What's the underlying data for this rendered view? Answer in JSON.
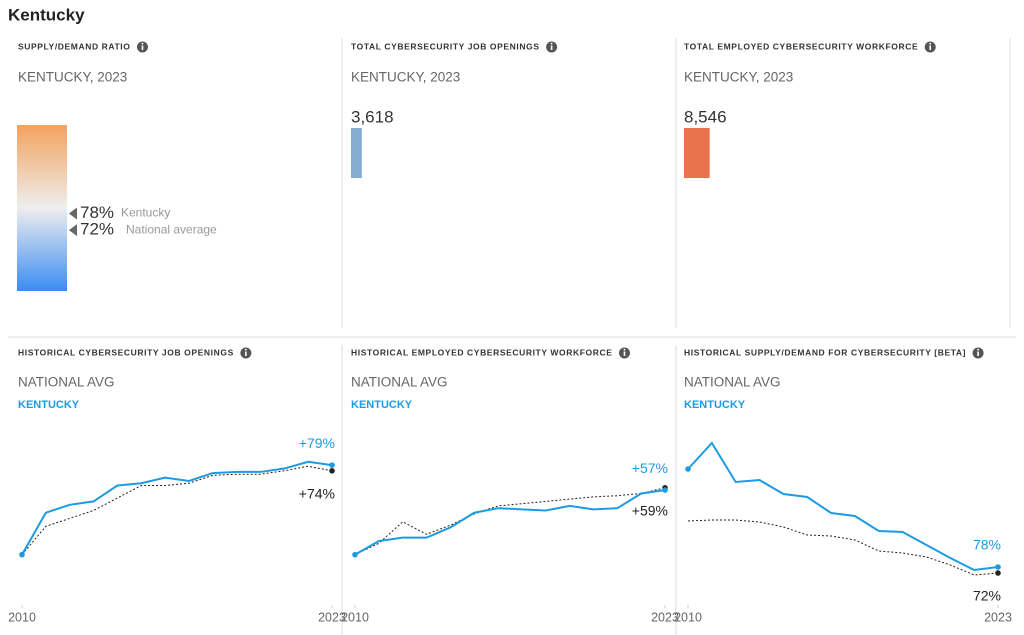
{
  "title": "Kentucky",
  "chart_data": [
    {
      "type": "gauge",
      "title": "SUPPLY/DEMAND RATIO",
      "subtitle": "KENTUCKY, 2023",
      "ylim": [
        50,
        110
      ],
      "colors": [
        "#f2a25e",
        "#eeeeee",
        "#3a8cf3"
      ],
      "series": [
        {
          "name": "Kentucky",
          "values": [
            78
          ],
          "value_labels": [
            "78%"
          ]
        },
        {
          "name": "National average",
          "values": [
            72
          ],
          "value_labels": [
            "72%"
          ]
        }
      ]
    },
    {
      "type": "bar",
      "title": "TOTAL CYBERSECURITY JOB OPENINGS",
      "subtitle": "KENTUCKY, 2023",
      "values": [
        3618
      ],
      "value_labels": [
        "3,618"
      ],
      "color": "#86adcf"
    },
    {
      "type": "bar",
      "title": "TOTAL EMPLOYED CYBERSECURITY WORKFORCE",
      "subtitle": "KENTUCKY, 2023",
      "values": [
        8546
      ],
      "value_labels": [
        "8,546"
      ],
      "color": "#e8734d"
    },
    {
      "type": "line",
      "title": "HISTORICAL CYBERSECURITY JOB OPENINGS",
      "x": [
        2010,
        2011,
        2012,
        2013,
        2014,
        2015,
        2016,
        2017,
        2018,
        2019,
        2020,
        2021,
        2022,
        2023
      ],
      "xlim": [
        2010,
        2023
      ],
      "xticks": [
        2010,
        2023
      ],
      "ylim": [
        -40,
        110
      ],
      "series": [
        {
          "name": "NATIONAL AVG",
          "color": "#222222",
          "dash": true,
          "values": [
            0,
            25,
            32,
            39,
            50,
            61,
            61,
            63,
            70,
            71,
            71,
            74,
            78,
            74
          ],
          "end_label": "+74%"
        },
        {
          "name": "KENTUCKY",
          "color": "#1c9be3",
          "dash": false,
          "values": [
            0,
            37,
            44,
            47,
            61,
            63,
            68,
            65,
            72,
            73,
            73,
            76,
            82,
            79
          ],
          "end_label": "+79%"
        }
      ]
    },
    {
      "type": "line",
      "title": "HISTORICAL EMPLOYED CYBERSECURITY WORKFORCE",
      "x": [
        2010,
        2011,
        2012,
        2013,
        2014,
        2015,
        2016,
        2017,
        2018,
        2019,
        2020,
        2021,
        2022,
        2023
      ],
      "xlim": [
        2010,
        2023
      ],
      "xticks": [
        2010,
        2023
      ],
      "ylim": [
        -40,
        110
      ],
      "series": [
        {
          "name": "NATIONAL AVG",
          "color": "#222222",
          "dash": true,
          "values": [
            0,
            10,
            29,
            18,
            26,
            36,
            43,
            45,
            47,
            49,
            51,
            52,
            54,
            59
          ],
          "end_label": "+59%"
        },
        {
          "name": "KENTUCKY",
          "color": "#1c9be3",
          "dash": false,
          "values": [
            0,
            12,
            15,
            15,
            24,
            37,
            41,
            40,
            39,
            43,
            40,
            41,
            54,
            57
          ],
          "end_label": "+57%"
        }
      ]
    },
    {
      "type": "line",
      "title": "HISTORICAL SUPPLY/DEMAND FOR CYBERSECURITY [BETA]",
      "x": [
        2010,
        2011,
        2012,
        2013,
        2014,
        2015,
        2016,
        2017,
        2018,
        2019,
        2020,
        2021,
        2022,
        2023
      ],
      "xlim": [
        2010,
        2023
      ],
      "xticks": [
        2010,
        2023
      ],
      "ylim": [
        45,
        215
      ],
      "series": [
        {
          "name": "NATIONAL AVG",
          "color": "#222222",
          "dash": true,
          "values": [
            124,
            125,
            125,
            123,
            118,
            110,
            109,
            105,
            94,
            92,
            88,
            80,
            70,
            72
          ],
          "end_label": "72%"
        },
        {
          "name": "KENTUCKY",
          "color": "#1c9be3",
          "dash": false,
          "values": [
            176,
            202,
            163,
            165,
            151,
            148,
            132,
            129,
            114,
            113,
            100,
            87,
            75,
            78
          ],
          "end_label": "78%"
        }
      ]
    }
  ]
}
